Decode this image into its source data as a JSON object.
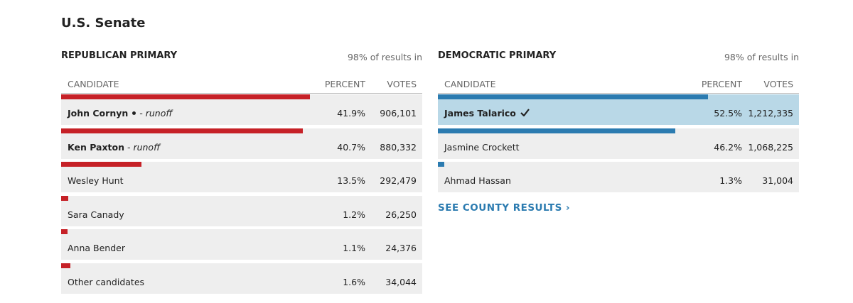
{
  "title": "U.S. Senate",
  "races": [
    {
      "heading": "REPUBLICAN PRIMARY",
      "status": "98% of results in",
      "color": "#c62127",
      "columns": [
        "CANDIDATE",
        "PERCENT",
        "VOTES"
      ],
      "candidates": [
        {
          "name": "John Cornyn",
          "incumbent": true,
          "note": "- runoff",
          "percent": 41.9,
          "percent_label": "41.9%",
          "votes": "906,101"
        },
        {
          "name": "Ken Paxton",
          "note": "- runoff",
          "percent": 40.7,
          "percent_label": "40.7%",
          "votes": "880,332"
        },
        {
          "name": "Wesley Hunt",
          "percent": 13.5,
          "percent_label": "13.5%",
          "votes": "292,479"
        },
        {
          "name": "Sara Canady",
          "percent": 1.2,
          "percent_label": "1.2%",
          "votes": "26,250"
        },
        {
          "name": "Anna Bender",
          "percent": 1.1,
          "percent_label": "1.1%",
          "votes": "24,376"
        },
        {
          "name": "Other candidates",
          "percent": 1.6,
          "percent_label": "1.6%",
          "votes": "34,044"
        }
      ]
    },
    {
      "heading": "DEMOCRATIC PRIMARY",
      "status": "98% of results in",
      "color": "#2b7bb0",
      "columns": [
        "CANDIDATE",
        "PERCENT",
        "VOTES"
      ],
      "candidates": [
        {
          "name": "James Talarico",
          "winner": true,
          "percent": 52.5,
          "percent_label": "52.5%",
          "votes": "1,212,335"
        },
        {
          "name": "Jasmine Crockett",
          "percent": 46.2,
          "percent_label": "46.2%",
          "votes": "1,068,225"
        },
        {
          "name": "Ahmad Hassan",
          "percent": 1.3,
          "percent_label": "1.3%",
          "votes": "31,004"
        }
      ]
    }
  ],
  "link": "SEE COUNTY RESULTS ›"
}
